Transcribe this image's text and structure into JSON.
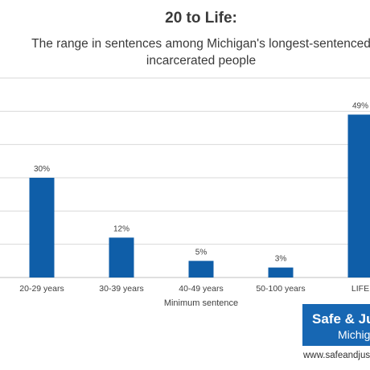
{
  "chart_data": {
    "type": "bar",
    "title": "20 to Life:",
    "subtitle_lines": [
      "The range in sentences among Michigan's longest-sentenced",
      "incarcerated people"
    ],
    "categories": [
      "20-29 years",
      "30-39 years",
      "40-49 years",
      "50-100 years",
      "LIFE"
    ],
    "values": [
      30,
      12,
      5,
      3,
      49
    ],
    "data_labels": [
      "30%",
      "12%",
      "5%",
      "3%",
      "49%"
    ],
    "xlabel": "Minimum sentence",
    "ylabel": "",
    "ylim": [
      0,
      60
    ],
    "grid": true,
    "bar_color": "#0f5ea8"
  },
  "logo": {
    "line1": "Safe & Just",
    "line2": "Michigan",
    "url": "www.safeandjust.org",
    "color": "#1767b3"
  }
}
